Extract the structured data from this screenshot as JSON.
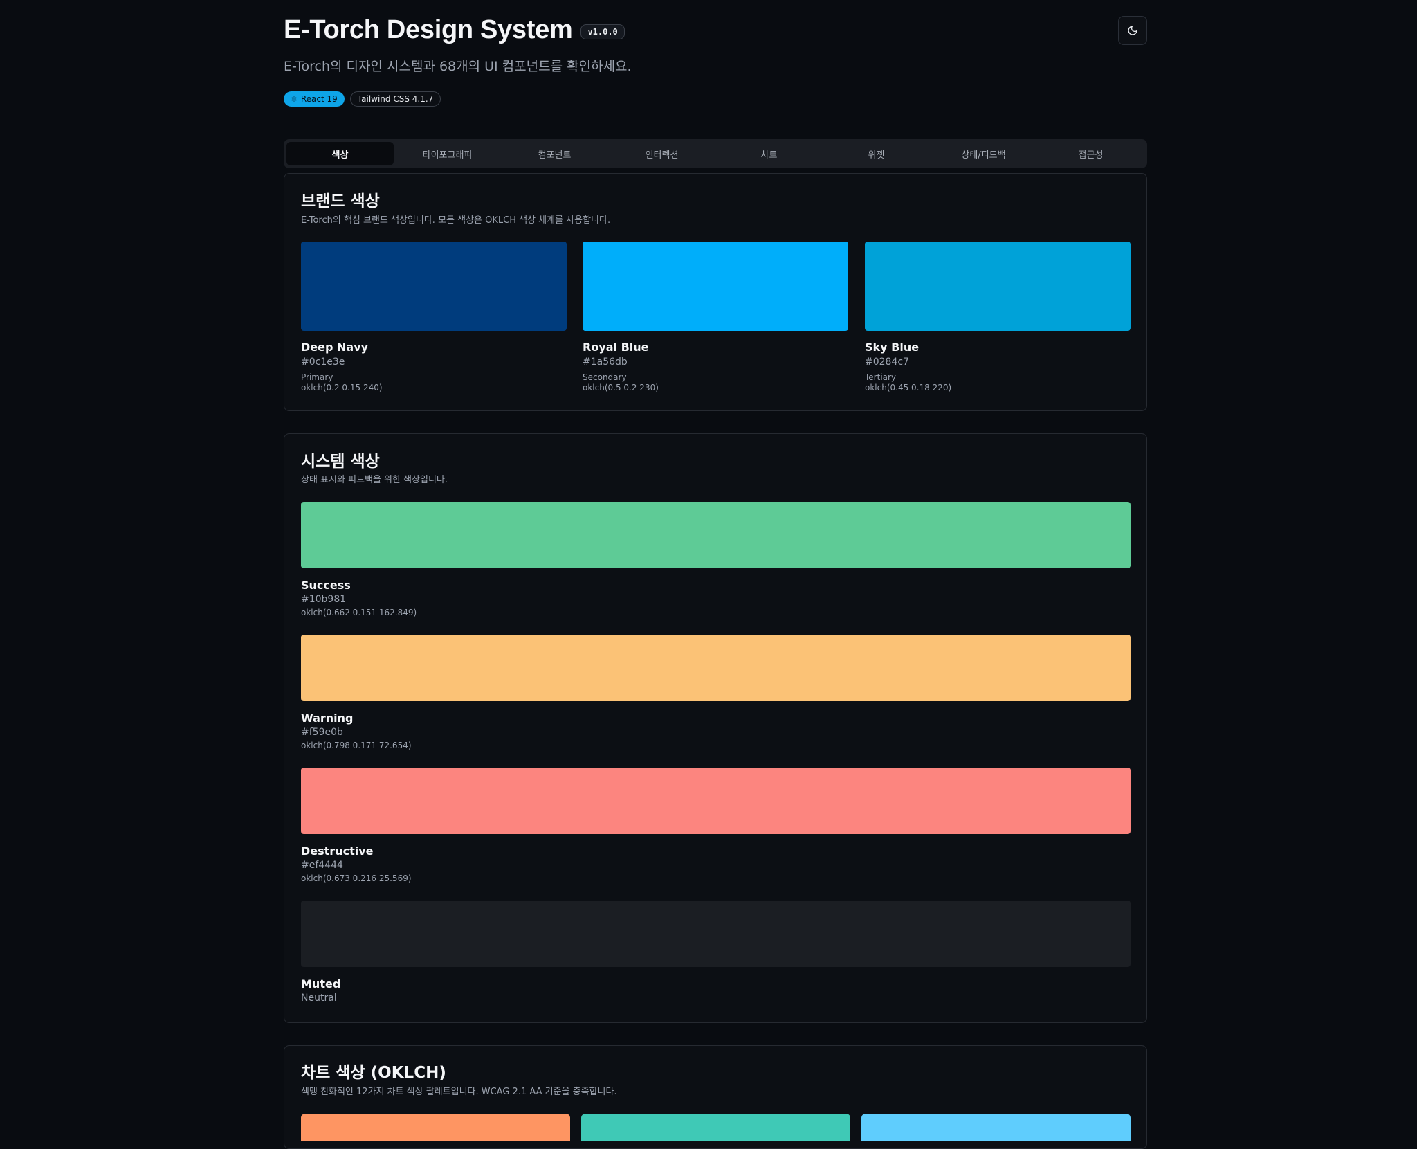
{
  "header": {
    "title": "E-Torch Design System",
    "version": "v1.0.0",
    "subtitle": "E-Torch의 디자인 시스템과 68개의 UI 컴포넌트를 확인하세요.",
    "chips": {
      "react": "React 19",
      "tailwind": "Tailwind CSS 4.1.7"
    },
    "theme_toggle_icon": "moon-icon"
  },
  "tabs": [
    {
      "label": "색상",
      "active": true
    },
    {
      "label": "타이포그래피"
    },
    {
      "label": "컴포넌트"
    },
    {
      "label": "인터렉션"
    },
    {
      "label": "차트"
    },
    {
      "label": "위젯"
    },
    {
      "label": "상태/피드백"
    },
    {
      "label": "접근성"
    }
  ],
  "brand": {
    "title": "브랜드 색상",
    "desc": "E-Torch의 핵심 브랜드 색상입니다. 모든 색상은 OKLCH 색상 체계를 사용합니다.",
    "colors": [
      {
        "name": "Deep Navy",
        "hex": "#0c1e3e",
        "role": "Primary",
        "oklch": "oklch(0.2 0.15 240)",
        "swatch": "#003c7d"
      },
      {
        "name": "Royal Blue",
        "hex": "#1a56db",
        "role": "Secondary",
        "oklch": "oklch(0.5 0.2 230)",
        "swatch": "#00aefa"
      },
      {
        "name": "Sky Blue",
        "hex": "#0284c7",
        "role": "Tertiary",
        "oklch": "oklch(0.45 0.18 220)",
        "swatch": "#00a2d8"
      }
    ]
  },
  "system": {
    "title": "시스템 색상",
    "desc": "상태 표시와 피드백을 위한 색상입니다.",
    "colors": [
      {
        "name": "Success",
        "hex": "#10b981",
        "oklch": "oklch(0.662 0.151 162.849)",
        "swatch": "#5ecb96"
      },
      {
        "name": "Warning",
        "hex": "#f59e0b",
        "oklch": "oklch(0.798 0.171 72.654)",
        "swatch": "#fbc276"
      },
      {
        "name": "Destructive",
        "hex": "#ef4444",
        "oklch": "oklch(0.673 0.216 25.569)",
        "swatch": "#fc857f"
      },
      {
        "name": "Muted",
        "hex": "Neutral",
        "swatch": "#1b1e23"
      }
    ]
  },
  "chart_colors": {
    "title": "차트 색상 (OKLCH)",
    "desc": "색맹 친화적인 12가지 차트 색상 팔레트입니다. WCAG 2.1 AA 기준을 충족합니다.",
    "swatches": [
      "#fe9562",
      "#3fc9b6",
      "#5fcdfd"
    ]
  }
}
